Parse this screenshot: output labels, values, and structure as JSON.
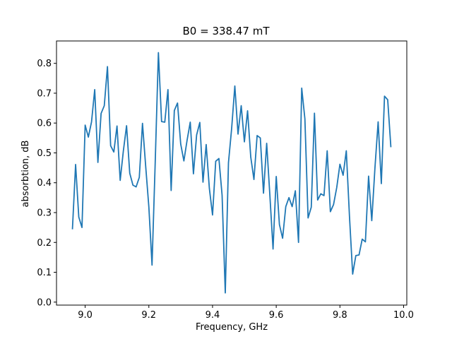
{
  "chart_data": {
    "type": "line",
    "title": "B0 = 338.47 mT",
    "xlabel": "Frequency, GHz",
    "ylabel": "absorbtion, dB",
    "xlim": [
      8.91,
      10.01
    ],
    "ylim": [
      -0.01,
      0.875
    ],
    "xticks": [
      9.0,
      9.2,
      9.4,
      9.6,
      9.8,
      10.0
    ],
    "xtick_labels": [
      "9.0",
      "9.2",
      "9.4",
      "9.6",
      "9.8",
      "10.0"
    ],
    "yticks": [
      0.0,
      0.1,
      0.2,
      0.3,
      0.4,
      0.5,
      0.6,
      0.7,
      0.8
    ],
    "ytick_labels": [
      "0.0",
      "0.1",
      "0.2",
      "0.3",
      "0.4",
      "0.5",
      "0.6",
      "0.7",
      "0.8"
    ],
    "grid": false,
    "color": "#1f77b4",
    "series": [
      {
        "x": [
          8.96,
          8.97,
          8.98,
          8.99,
          9.0,
          9.01,
          9.02,
          9.03,
          9.04,
          9.05,
          9.06,
          9.07,
          9.08,
          9.09,
          9.1,
          9.11,
          9.12,
          9.13,
          9.14,
          9.15,
          9.16,
          9.17,
          9.18,
          9.19,
          9.2,
          9.21,
          9.22,
          9.23,
          9.24,
          9.25,
          9.26,
          9.27,
          9.28,
          9.29,
          9.3,
          9.31,
          9.32,
          9.33,
          9.34,
          9.35,
          9.36,
          9.37,
          9.38,
          9.39,
          9.4,
          9.41,
          9.42,
          9.43,
          9.44,
          9.45,
          9.46,
          9.47,
          9.48,
          9.49,
          9.5,
          9.51,
          9.52,
          9.53,
          9.54,
          9.55,
          9.56,
          9.57,
          9.58,
          9.59,
          9.6,
          9.61,
          9.62,
          9.63,
          9.64,
          9.65,
          9.66,
          9.67,
          9.68,
          9.69,
          9.7,
          9.71,
          9.72,
          9.73,
          9.74,
          9.75,
          9.76,
          9.77,
          9.78,
          9.79,
          9.8,
          9.81,
          9.82,
          9.83,
          9.84,
          9.85,
          9.86,
          9.87,
          9.88,
          9.89,
          9.9,
          9.91,
          9.92,
          9.93,
          9.94,
          9.95,
          9.96
        ],
        "values": [
          0.244,
          0.461,
          0.285,
          0.25,
          0.593,
          0.553,
          0.604,
          0.712,
          0.468,
          0.632,
          0.658,
          0.789,
          0.524,
          0.503,
          0.59,
          0.408,
          0.507,
          0.591,
          0.432,
          0.392,
          0.386,
          0.418,
          0.599,
          0.456,
          0.319,
          0.124,
          0.469,
          0.836,
          0.605,
          0.603,
          0.712,
          0.374,
          0.642,
          0.667,
          0.53,
          0.473,
          0.542,
          0.603,
          0.43,
          0.56,
          0.602,
          0.402,
          0.528,
          0.381,
          0.292,
          0.472,
          0.481,
          0.358,
          0.031,
          0.467,
          0.582,
          0.724,
          0.563,
          0.658,
          0.537,
          0.641,
          0.486,
          0.411,
          0.558,
          0.55,
          0.365,
          0.532,
          0.358,
          0.178,
          0.421,
          0.26,
          0.214,
          0.32,
          0.35,
          0.32,
          0.373,
          0.2,
          0.717,
          0.614,
          0.282,
          0.318,
          0.633,
          0.342,
          0.363,
          0.357,
          0.507,
          0.303,
          0.327,
          0.384,
          0.462,
          0.425,
          0.507,
          0.287,
          0.094,
          0.156,
          0.158,
          0.211,
          0.202,
          0.422,
          0.273,
          0.45,
          0.604,
          0.397,
          0.69,
          0.678,
          0.519
        ]
      }
    ]
  }
}
